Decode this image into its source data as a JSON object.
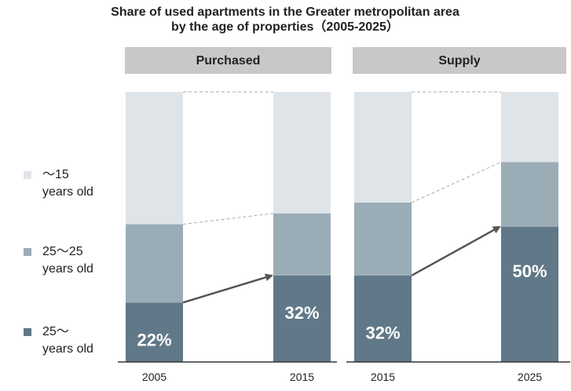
{
  "chart_data": {
    "type": "bar",
    "stacked": true,
    "title": "Share of used apartments in the Greater metropolitan area\nby the age of properties（2005-2025）",
    "ylim": [
      0,
      100
    ],
    "units": "%",
    "legend_position": "left",
    "series": [
      {
        "key": "old",
        "name": "25～\nyears old",
        "color": "#607888"
      },
      {
        "key": "mid",
        "name": "25～25\nyears old",
        "color": "#9aacb6"
      },
      {
        "key": "young",
        "name": "～15\nyears old",
        "color": "#dfe4e9"
      }
    ],
    "panels": [
      {
        "header": "Purchased",
        "categories": [
          "2005",
          "2015"
        ],
        "values": {
          "old": [
            22,
            32
          ],
          "mid": [
            29,
            23
          ],
          "young": [
            49,
            45
          ]
        },
        "data_labels": [
          "22%",
          "32%"
        ]
      },
      {
        "header": "Supply",
        "categories": [
          "2015",
          "2025"
        ],
        "values": {
          "old": [
            32,
            50
          ],
          "mid": [
            27,
            24
          ],
          "young": [
            41,
            26
          ]
        },
        "data_labels": [
          "32%",
          "50%"
        ]
      }
    ],
    "colors": {
      "header_bg": "#c8c8c8",
      "axis": "#333333",
      "arrow": "#555555",
      "connector": "#aaaaaa",
      "label_text": "#ffffff",
      "text": "#222222"
    }
  }
}
